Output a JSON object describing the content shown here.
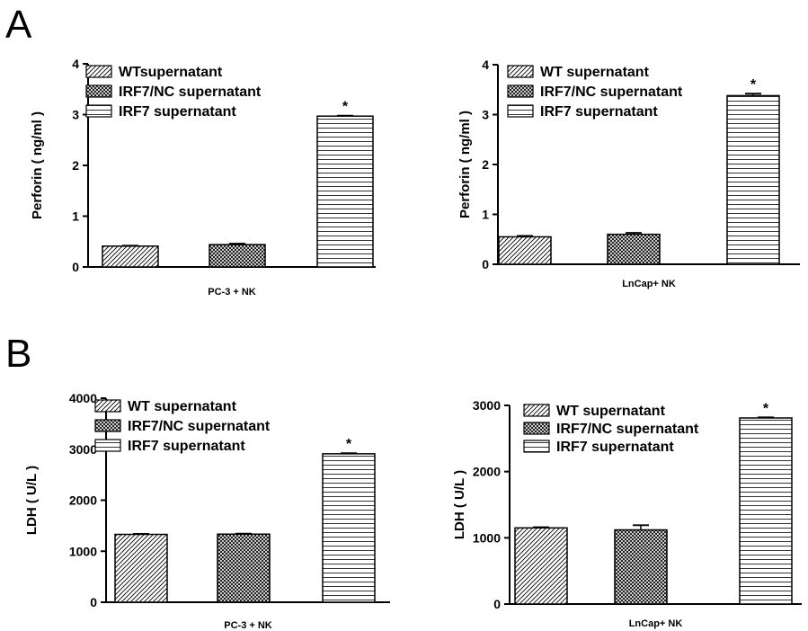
{
  "panel_labels": [
    "A",
    "B"
  ],
  "chart_data": [
    {
      "type": "bar",
      "panel": "A",
      "title": "",
      "xlabel": "PC-3 + NK",
      "ylabel": "Perforin ( ng/ml )",
      "ylim": [
        0,
        4
      ],
      "yticks": [
        "0",
        "1",
        "2",
        "3",
        "4"
      ],
      "categories": [
        "WTsupernatant",
        "IRF7/NC supernatant",
        "IRF7 supernatant"
      ],
      "values": [
        0.41,
        0.44,
        2.97
      ],
      "errors": [
        0.01,
        0.02,
        0.01
      ],
      "significance": [
        "",
        "",
        "*"
      ],
      "patterns": [
        "diagonal",
        "crosshatch",
        "horizontal"
      ],
      "legend_position": "top-left"
    },
    {
      "type": "bar",
      "panel": "A",
      "title": "",
      "xlabel": "LnCap+ NK",
      "ylabel": "Perforin ( ng/ml )",
      "ylim": [
        0,
        4
      ],
      "yticks": [
        "0",
        "1",
        "2",
        "3",
        "4"
      ],
      "categories": [
        "WT supernatant",
        "IRF7/NC supernatant",
        "IRF7 supernatant"
      ],
      "values": [
        0.55,
        0.6,
        3.38
      ],
      "errors": [
        0.02,
        0.03,
        0.04
      ],
      "significance": [
        "",
        "",
        "*"
      ],
      "patterns": [
        "diagonal",
        "crosshatch",
        "horizontal"
      ],
      "legend_position": "top-left"
    },
    {
      "type": "bar",
      "panel": "B",
      "title": "",
      "xlabel": "PC-3 + NK",
      "ylabel": "LDH ( U/L )",
      "ylim": [
        0,
        4000
      ],
      "yticks": [
        "0",
        "1000",
        "2000",
        "3000",
        "4000"
      ],
      "categories": [
        "WT supernatant",
        "IRF7/NC supernatant",
        "IRF7 supernatant"
      ],
      "values": [
        1330,
        1335,
        2910
      ],
      "errors": [
        10,
        10,
        12
      ],
      "significance": [
        "",
        "",
        "*"
      ],
      "patterns": [
        "diagonal",
        "crosshatch",
        "horizontal"
      ],
      "legend_position": "top-left"
    },
    {
      "type": "bar",
      "panel": "B",
      "title": "",
      "xlabel": "LnCap+ NK",
      "ylabel": "LDH ( U/L )",
      "ylim": [
        0,
        3000
      ],
      "yticks": [
        "0",
        "1000",
        "2000",
        "3000"
      ],
      "categories": [
        "WT supernatant",
        "IRF7/NC supernatant",
        "IRF7 supernatant"
      ],
      "values": [
        1150,
        1120,
        2810
      ],
      "errors": [
        10,
        70,
        10
      ],
      "significance": [
        "",
        "",
        "*"
      ],
      "patterns": [
        "diagonal",
        "crosshatch",
        "horizontal"
      ],
      "legend_position": "top-left"
    }
  ]
}
